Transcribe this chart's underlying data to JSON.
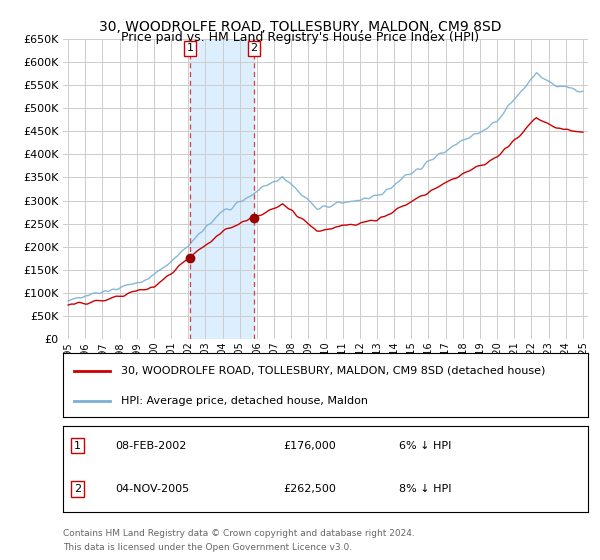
{
  "title": "30, WOODROLFE ROAD, TOLLESBURY, MALDON, CM9 8SD",
  "subtitle": "Price paid vs. HM Land Registry's House Price Index (HPI)",
  "transactions": [
    {
      "label": "1",
      "date_str": "08-FEB-2002",
      "date_num": 2002.1,
      "price": 176000,
      "note": "6% ↓ HPI"
    },
    {
      "label": "2",
      "date_str": "04-NOV-2005",
      "date_num": 2005.84,
      "price": 262500,
      "note": "8% ↓ HPI"
    }
  ],
  "legend_line1": "30, WOODROLFE ROAD, TOLLESBURY, MALDON, CM9 8SD (detached house)",
  "legend_line2": "HPI: Average price, detached house, Maldon",
  "footer1": "Contains HM Land Registry data © Crown copyright and database right 2024.",
  "footer2": "This data is licensed under the Open Government Licence v3.0.",
  "ylim": [
    0,
    650000
  ],
  "xlim": [
    1994.7,
    2025.3
  ],
  "yticks": [
    0,
    50000,
    100000,
    150000,
    200000,
    250000,
    300000,
    350000,
    400000,
    450000,
    500000,
    550000,
    600000,
    650000
  ],
  "red_line_color": "#cc0000",
  "blue_line_color": "#7ab0d4",
  "shade_color": "#ddeeff",
  "grid_color": "#cccccc",
  "background_color": "#ffffff",
  "title_fontsize": 10,
  "subtitle_fontsize": 9
}
